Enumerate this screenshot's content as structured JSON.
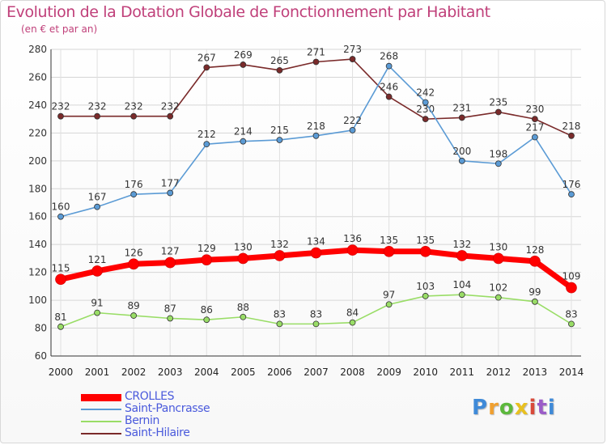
{
  "title": "Evolution de la Dotation Globale de Fonctionnement par Habitant",
  "subtitle": "(en € et par an)",
  "brand": "Proxiti",
  "brand_letters": [
    "P",
    "r",
    "o",
    "x",
    "i",
    "t",
    "i"
  ],
  "chart_data": {
    "type": "line",
    "title": "Evolution de la Dotation Globale de Fonctionnement par Habitant",
    "subtitle": "(en € et par an)",
    "xlabel": "",
    "ylabel": "",
    "x": [
      2000,
      2001,
      2002,
      2003,
      2004,
      2005,
      2006,
      2007,
      2008,
      2009,
      2010,
      2011,
      2012,
      2013,
      2014
    ],
    "ylim": [
      60,
      280
    ],
    "yticks": [
      60,
      80,
      100,
      120,
      140,
      160,
      180,
      200,
      220,
      240,
      260,
      280
    ],
    "grid": true,
    "legend_position": "bottom-left",
    "series": [
      {
        "name": "CROLLES",
        "color": "#ff0000",
        "values": [
          115,
          121,
          126,
          127,
          129,
          130,
          132,
          134,
          136,
          135,
          135,
          132,
          130,
          128,
          109
        ]
      },
      {
        "name": "Saint-Pancrasse",
        "color": "#5b9bd5",
        "values": [
          160,
          167,
          176,
          177,
          212,
          214,
          215,
          218,
          222,
          268,
          242,
          200,
          198,
          217,
          176
        ]
      },
      {
        "name": "Bernin",
        "color": "#99dd66",
        "values": [
          81,
          91,
          89,
          87,
          86,
          88,
          83,
          83,
          84,
          97,
          103,
          104,
          102,
          99,
          83
        ]
      },
      {
        "name": "Saint-Hilaire",
        "color": "#7a2a2a",
        "values": [
          232,
          232,
          232,
          232,
          267,
          269,
          265,
          271,
          273,
          246,
          230,
          231,
          235,
          230,
          218
        ]
      }
    ]
  }
}
